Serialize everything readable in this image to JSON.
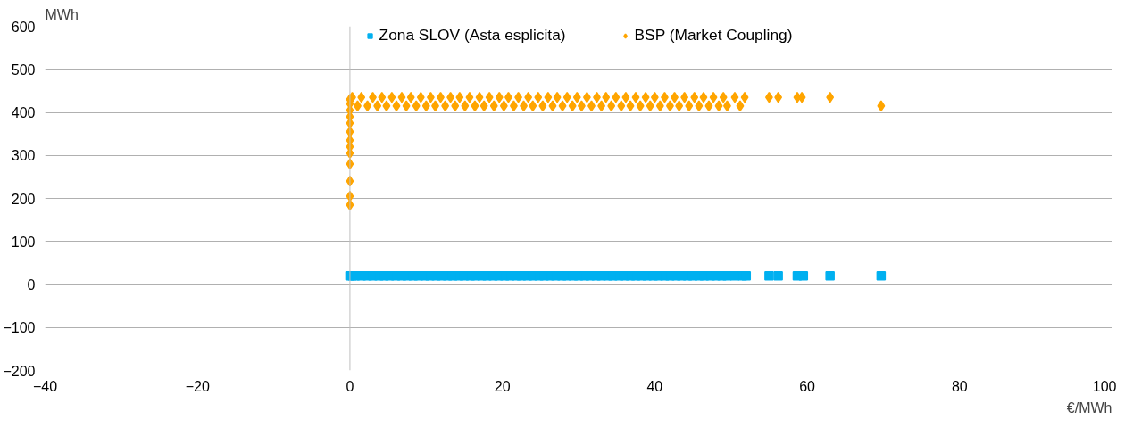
{
  "chart_data": {
    "type": "scatter",
    "xlabel": "€/MWh",
    "ylabel": "MWh",
    "xlim": [
      -40,
      100
    ],
    "xticks": [
      -40,
      -20,
      0,
      20,
      40,
      60,
      80,
      100
    ],
    "ylim": [
      -200,
      600
    ],
    "yticks": [
      -200,
      -100,
      0,
      100,
      200,
      300,
      400,
      500,
      600
    ],
    "grid": "y",
    "legend": "top",
    "ref_lines": [
      {
        "axis": "x",
        "value": 0,
        "color": "#bfbfbf"
      }
    ],
    "series": [
      {
        "name": "Zona SLOV (Asta esplicita)",
        "color": "#00b0f0",
        "marker": "square",
        "x": [
          0,
          0.3,
          0.7,
          1.5,
          2.3,
          3,
          3.8,
          4.5,
          5.2,
          6,
          6.8,
          7.5,
          8.3,
          9,
          9.8,
          10.5,
          11.3,
          12,
          12.8,
          13.5,
          14.3,
          15,
          15.8,
          16.5,
          17.3,
          18,
          18.8,
          19.5,
          20.3,
          21,
          21.8,
          22.5,
          23.3,
          24,
          24.8,
          25.5,
          26.3,
          27,
          27.8,
          28.5,
          29.3,
          30,
          30.8,
          31.5,
          32.3,
          33,
          33.8,
          34.5,
          35.3,
          36,
          36.8,
          37.5,
          38.3,
          39,
          39.8,
          40.5,
          41.3,
          42,
          42.8,
          43.5,
          44.3,
          45,
          45.8,
          46.5,
          47.3,
          48,
          48.8,
          49.5,
          50.5,
          51.5,
          52,
          55,
          56.2,
          58.7,
          59.5,
          63,
          69.7
        ],
        "values": [
          20,
          20,
          20,
          20,
          20,
          20,
          20,
          20,
          20,
          20,
          20,
          20,
          20,
          20,
          20,
          20,
          20,
          20,
          20,
          20,
          20,
          20,
          20,
          20,
          20,
          20,
          20,
          20,
          20,
          20,
          20,
          20,
          20,
          20,
          20,
          20,
          20,
          20,
          20,
          20,
          20,
          20,
          20,
          20,
          20,
          20,
          20,
          20,
          20,
          20,
          20,
          20,
          20,
          20,
          20,
          20,
          20,
          20,
          20,
          20,
          20,
          20,
          20,
          20,
          20,
          20,
          20,
          20,
          20,
          20,
          20,
          20,
          20,
          20,
          20,
          20,
          20
        ]
      },
      {
        "name": "BSP (Market Coupling)",
        "color": "#ffa500",
        "marker": "diamond",
        "x": [
          0,
          0,
          0,
          0,
          0,
          0,
          0,
          0,
          0,
          0,
          0,
          0,
          0,
          0.3,
          1,
          1.5,
          2.3,
          3,
          3.6,
          4.2,
          4.8,
          5.5,
          6.1,
          6.8,
          7.4,
          8,
          8.7,
          9.3,
          10,
          10.6,
          11.2,
          11.9,
          12.5,
          13.2,
          13.8,
          14.4,
          15.1,
          15.7,
          16.4,
          17,
          17.6,
          18.3,
          18.9,
          19.6,
          20.2,
          20.8,
          21.5,
          22.1,
          22.8,
          23.4,
          24,
          24.7,
          25.3,
          26,
          26.6,
          27.2,
          27.9,
          28.5,
          29.2,
          29.8,
          30.4,
          31.1,
          31.7,
          32.4,
          33,
          33.6,
          34.3,
          34.9,
          35.6,
          36.2,
          36.8,
          37.5,
          38.1,
          38.8,
          39.4,
          40,
          40.7,
          41.3,
          42,
          42.6,
          43.2,
          43.9,
          44.5,
          45.2,
          45.8,
          46.4,
          47.1,
          47.7,
          48.4,
          49,
          49.5,
          50.5,
          51.2,
          51.8,
          55,
          56.2,
          58.7,
          59.3,
          63,
          69.7
        ],
        "values": [
          185,
          205,
          240,
          280,
          305,
          320,
          335,
          355,
          375,
          390,
          405,
          420,
          430,
          435,
          415,
          435,
          415,
          435,
          415,
          435,
          415,
          435,
          415,
          435,
          415,
          435,
          415,
          435,
          415,
          435,
          415,
          435,
          415,
          435,
          415,
          435,
          415,
          435,
          415,
          435,
          415,
          435,
          415,
          435,
          415,
          435,
          415,
          435,
          415,
          435,
          415,
          435,
          415,
          435,
          415,
          435,
          415,
          435,
          415,
          435,
          415,
          435,
          415,
          435,
          415,
          435,
          415,
          435,
          415,
          435,
          415,
          435,
          415,
          435,
          415,
          435,
          415,
          435,
          415,
          435,
          415,
          435,
          415,
          435,
          415,
          435,
          415,
          435,
          415,
          435,
          415,
          435,
          415,
          435,
          435,
          435,
          435,
          435,
          435,
          415
        ]
      }
    ]
  }
}
